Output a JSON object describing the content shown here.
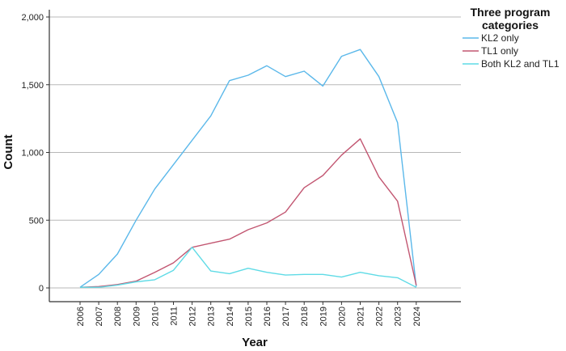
{
  "chart_data": {
    "type": "line",
    "title": "",
    "xlabel": "Year",
    "ylabel": "Count",
    "x": [
      "2006",
      "2007",
      "2008",
      "2009",
      "2010",
      "2011",
      "2012",
      "2013",
      "2014",
      "2015",
      "2016",
      "2017",
      "2018",
      "2019",
      "2020",
      "2021",
      "2022",
      "2023",
      "2024"
    ],
    "ylim": [
      0,
      2000
    ],
    "yticks": [
      0,
      500,
      1000,
      1500,
      2000
    ],
    "ytick_labels": [
      "0",
      "500",
      "1,000",
      "1,500",
      "2,000"
    ],
    "grid": "horizontal",
    "legend": {
      "title_lines": [
        "Three program",
        "categories"
      ],
      "position": "top-right outside plot"
    },
    "series": [
      {
        "name": "KL2 only",
        "color": "#5bb8ea",
        "values": [
          5,
          100,
          250,
          500,
          730,
          910,
          1090,
          1270,
          1530,
          1570,
          1640,
          1560,
          1600,
          1490,
          1710,
          1760,
          1560,
          1220,
          10
        ]
      },
      {
        "name": "TL1 only",
        "color": "#c25671",
        "values": [
          5,
          10,
          25,
          50,
          115,
          185,
          300,
          330,
          360,
          430,
          480,
          560,
          740,
          830,
          980,
          1100,
          820,
          640,
          20
        ]
      },
      {
        "name": "Both KL2 and TL1",
        "color": "#5fdbe6",
        "values": [
          5,
          5,
          20,
          45,
          60,
          130,
          300,
          125,
          105,
          145,
          115,
          95,
          100,
          100,
          80,
          115,
          90,
          75,
          5
        ]
      }
    ]
  }
}
